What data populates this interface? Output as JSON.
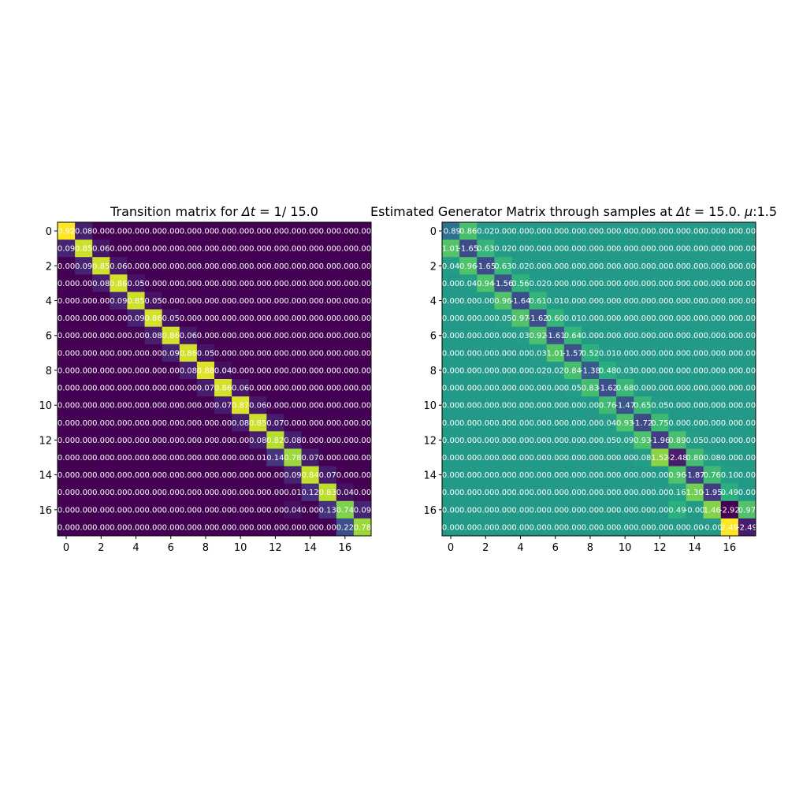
{
  "chart_data": [
    {
      "type": "heatmap",
      "title_prefix": "Transition matrix for ",
      "title_math": "Δt",
      "title_suffix": " = 1/ 15.0",
      "n": 18,
      "xticks": [
        0,
        2,
        4,
        6,
        8,
        10,
        12,
        14,
        16
      ],
      "yticks": [
        0,
        2,
        4,
        6,
        8,
        10,
        12,
        14,
        16
      ],
      "color_range": [
        0,
        0.92
      ],
      "colormap": [
        "#440154",
        "#472d7b",
        "#3b528b",
        "#2c728e",
        "#21918c",
        "#28ae80",
        "#5ec962",
        "#addc30",
        "#fde725"
      ],
      "cells": [
        {
          "r": 0,
          "c": 0,
          "v": 0.92,
          "t": "0.92"
        },
        {
          "r": 0,
          "c": 1,
          "v": 0.08,
          "t": "0.08"
        },
        {
          "r": 1,
          "c": 0,
          "v": 0.09,
          "t": "0.09"
        },
        {
          "r": 1,
          "c": 1,
          "v": 0.85,
          "t": "0.85"
        },
        {
          "r": 1,
          "c": 2,
          "v": 0.06,
          "t": "0.06"
        },
        {
          "r": 2,
          "c": 1,
          "v": 0.09,
          "t": "0.09"
        },
        {
          "r": 2,
          "c": 2,
          "v": 0.85,
          "t": "0.85"
        },
        {
          "r": 2,
          "c": 3,
          "v": 0.06,
          "t": "0.06"
        },
        {
          "r": 3,
          "c": 2,
          "v": 0.08,
          "t": "0.08"
        },
        {
          "r": 3,
          "c": 3,
          "v": 0.86,
          "t": "0.86"
        },
        {
          "r": 3,
          "c": 4,
          "v": 0.05,
          "t": "0.05"
        },
        {
          "r": 4,
          "c": 3,
          "v": 0.09,
          "t": "0.09"
        },
        {
          "r": 4,
          "c": 4,
          "v": 0.85,
          "t": "0.85"
        },
        {
          "r": 4,
          "c": 5,
          "v": 0.05,
          "t": "0.05"
        },
        {
          "r": 5,
          "c": 4,
          "v": 0.09,
          "t": "0.09"
        },
        {
          "r": 5,
          "c": 5,
          "v": 0.86,
          "t": "0.86"
        },
        {
          "r": 5,
          "c": 6,
          "v": 0.05,
          "t": "0.05"
        },
        {
          "r": 6,
          "c": 5,
          "v": 0.08,
          "t": "0.08"
        },
        {
          "r": 6,
          "c": 6,
          "v": 0.86,
          "t": "0.86"
        },
        {
          "r": 6,
          "c": 7,
          "v": 0.06,
          "t": "0.06"
        },
        {
          "r": 7,
          "c": 6,
          "v": 0.09,
          "t": "0.09"
        },
        {
          "r": 7,
          "c": 7,
          "v": 0.86,
          "t": "0.86"
        },
        {
          "r": 7,
          "c": 8,
          "v": 0.05,
          "t": "0.05"
        },
        {
          "r": 8,
          "c": 7,
          "v": 0.08,
          "t": "0.08"
        },
        {
          "r": 8,
          "c": 8,
          "v": 0.88,
          "t": "0.88"
        },
        {
          "r": 8,
          "c": 9,
          "v": 0.04,
          "t": "0.04"
        },
        {
          "r": 9,
          "c": 8,
          "v": 0.07,
          "t": "0.07"
        },
        {
          "r": 9,
          "c": 9,
          "v": 0.86,
          "t": "0.86"
        },
        {
          "r": 9,
          "c": 10,
          "v": 0.06,
          "t": "0.06"
        },
        {
          "r": 10,
          "c": 9,
          "v": 0.07,
          "t": "0.07"
        },
        {
          "r": 10,
          "c": 10,
          "v": 0.87,
          "t": "0.87"
        },
        {
          "r": 10,
          "c": 11,
          "v": 0.06,
          "t": "0.06"
        },
        {
          "r": 11,
          "c": 10,
          "v": 0.08,
          "t": "0.08"
        },
        {
          "r": 11,
          "c": 11,
          "v": 0.85,
          "t": "0.85"
        },
        {
          "r": 11,
          "c": 12,
          "v": 0.07,
          "t": "0.07"
        },
        {
          "r": 12,
          "c": 11,
          "v": 0.08,
          "t": "0.08"
        },
        {
          "r": 12,
          "c": 12,
          "v": 0.82,
          "t": "0.82"
        },
        {
          "r": 12,
          "c": 13,
          "v": 0.08,
          "t": "0.08"
        },
        {
          "r": 13,
          "c": 11,
          "v": 0.01,
          "t": "0.01"
        },
        {
          "r": 13,
          "c": 12,
          "v": 0.14,
          "t": "0.14"
        },
        {
          "r": 13,
          "c": 13,
          "v": 0.78,
          "t": "0.78"
        },
        {
          "r": 13,
          "c": 14,
          "v": 0.07,
          "t": "0.07"
        },
        {
          "r": 14,
          "c": 13,
          "v": 0.09,
          "t": "0.09"
        },
        {
          "r": 14,
          "c": 14,
          "v": 0.84,
          "t": "0.84"
        },
        {
          "r": 14,
          "c": 15,
          "v": 0.07,
          "t": "0.07"
        },
        {
          "r": 15,
          "c": 13,
          "v": 0.01,
          "t": "0.01"
        },
        {
          "r": 15,
          "c": 14,
          "v": 0.12,
          "t": "0.12"
        },
        {
          "r": 15,
          "c": 15,
          "v": 0.83,
          "t": "0.83"
        },
        {
          "r": 15,
          "c": 16,
          "v": 0.04,
          "t": "0.04"
        },
        {
          "r": 16,
          "c": 13,
          "v": 0.04,
          "t": "0.04"
        },
        {
          "r": 16,
          "c": 15,
          "v": 0.13,
          "t": "0.13"
        },
        {
          "r": 16,
          "c": 16,
          "v": 0.74,
          "t": "0.74"
        },
        {
          "r": 16,
          "c": 17,
          "v": 0.09,
          "t": "0.09"
        },
        {
          "r": 17,
          "c": 16,
          "v": 0.22,
          "t": "0.22"
        },
        {
          "r": 17,
          "c": 17,
          "v": 0.78,
          "t": "0.78"
        }
      ]
    },
    {
      "type": "heatmap",
      "title_prefix": "Estimated Generator Matrix through samples at ",
      "title_math": "Δt",
      "title_suffix": " = 15.0. ",
      "title_mu": "μ",
      "title_mu_suffix": ":1.5",
      "n": 18,
      "xticks": [
        0,
        2,
        4,
        6,
        8,
        10,
        12,
        14,
        16
      ],
      "yticks": [
        0,
        2,
        4,
        6,
        8,
        10,
        12,
        14,
        16
      ],
      "color_range": [
        -2.92,
        2.49
      ],
      "colormap": [
        "#440154",
        "#472d7b",
        "#3b528b",
        "#2c728e",
        "#21918c",
        "#28ae80",
        "#5ec962",
        "#addc30",
        "#fde725"
      ],
      "cells": [
        {
          "r": 0,
          "c": 0,
          "v": -0.89,
          "t": "-0.89"
        },
        {
          "r": 0,
          "c": 1,
          "v": 0.86,
          "t": "0.86"
        },
        {
          "r": 0,
          "c": 2,
          "v": 0.02,
          "t": "0.02"
        },
        {
          "r": 1,
          "c": 0,
          "v": 1.01,
          "t": "1.01"
        },
        {
          "r": 1,
          "c": 1,
          "v": -1.65,
          "t": "-1.65"
        },
        {
          "r": 1,
          "c": 2,
          "v": 0.63,
          "t": "0.63"
        },
        {
          "r": 1,
          "c": 3,
          "v": 0.02,
          "t": "0.02"
        },
        {
          "r": 2,
          "c": 0,
          "v": 0.04,
          "t": "0.04"
        },
        {
          "r": 2,
          "c": 1,
          "v": 0.96,
          "t": "0.96"
        },
        {
          "r": 2,
          "c": 2,
          "v": -1.65,
          "t": "-1.65"
        },
        {
          "r": 2,
          "c": 3,
          "v": 0.63,
          "t": "0.63"
        },
        {
          "r": 2,
          "c": 4,
          "v": 0.02,
          "t": "0.02"
        },
        {
          "r": 3,
          "c": 1,
          "v": 0.04,
          "t": "0.04"
        },
        {
          "r": 3,
          "c": 2,
          "v": 0.94,
          "t": "0.94"
        },
        {
          "r": 3,
          "c": 3,
          "v": -1.56,
          "t": "-1.56"
        },
        {
          "r": 3,
          "c": 4,
          "v": 0.56,
          "t": "0.56"
        },
        {
          "r": 3,
          "c": 5,
          "v": 0.02,
          "t": "0.02"
        },
        {
          "r": 4,
          "c": 3,
          "v": 0.96,
          "t": "0.96"
        },
        {
          "r": 4,
          "c": 4,
          "v": -1.64,
          "t": "-1.64"
        },
        {
          "r": 4,
          "c": 5,
          "v": 0.61,
          "t": "0.61"
        },
        {
          "r": 4,
          "c": 6,
          "v": 0.01,
          "t": "0.01"
        },
        {
          "r": 5,
          "c": 3,
          "v": 0.05,
          "t": "0.05"
        },
        {
          "r": 5,
          "c": 4,
          "v": 0.97,
          "t": "0.97"
        },
        {
          "r": 5,
          "c": 5,
          "v": -1.62,
          "t": "-1.62"
        },
        {
          "r": 5,
          "c": 6,
          "v": 0.6,
          "t": "0.60"
        },
        {
          "r": 5,
          "c": 7,
          "v": 0.01,
          "t": "0.01"
        },
        {
          "r": 6,
          "c": 4,
          "v": 0.03,
          "t": "0.03"
        },
        {
          "r": 6,
          "c": 5,
          "v": 0.92,
          "t": "0.92"
        },
        {
          "r": 6,
          "c": 6,
          "v": -1.61,
          "t": "-1.61"
        },
        {
          "r": 6,
          "c": 7,
          "v": 0.64,
          "t": "0.64"
        },
        {
          "r": 7,
          "c": 5,
          "v": 0.03,
          "t": "0.03"
        },
        {
          "r": 7,
          "c": 6,
          "v": 1.01,
          "t": "1.01"
        },
        {
          "r": 7,
          "c": 7,
          "v": -1.57,
          "t": "-1.57"
        },
        {
          "r": 7,
          "c": 8,
          "v": 0.52,
          "t": "0.52"
        },
        {
          "r": 7,
          "c": 9,
          "v": 0.01,
          "t": "0.01"
        },
        {
          "r": 8,
          "c": 5,
          "v": 0.02,
          "t": "0.02"
        },
        {
          "r": 8,
          "c": 6,
          "v": 0.02,
          "t": "0.02"
        },
        {
          "r": 8,
          "c": 7,
          "v": 0.84,
          "t": "0.84"
        },
        {
          "r": 8,
          "c": 8,
          "v": -1.38,
          "t": "-1.38"
        },
        {
          "r": 8,
          "c": 9,
          "v": 0.48,
          "t": "0.48"
        },
        {
          "r": 8,
          "c": 10,
          "v": 0.03,
          "t": "0.03"
        },
        {
          "r": 9,
          "c": 7,
          "v": 0.05,
          "t": "0.05"
        },
        {
          "r": 9,
          "c": 8,
          "v": 0.83,
          "t": "0.83"
        },
        {
          "r": 9,
          "c": 9,
          "v": -1.62,
          "t": "-1.62"
        },
        {
          "r": 9,
          "c": 10,
          "v": 0.68,
          "t": "0.68"
        },
        {
          "r": 10,
          "c": 9,
          "v": 0.76,
          "t": "0.76"
        },
        {
          "r": 10,
          "c": 10,
          "v": -1.47,
          "t": "-1.47"
        },
        {
          "r": 10,
          "c": 11,
          "v": 0.65,
          "t": "0.65"
        },
        {
          "r": 10,
          "c": 12,
          "v": 0.05,
          "t": "0.05"
        },
        {
          "r": 11,
          "c": 9,
          "v": 0.04,
          "t": "0.04"
        },
        {
          "r": 11,
          "c": 10,
          "v": 0.93,
          "t": "0.93"
        },
        {
          "r": 11,
          "c": 11,
          "v": -1.72,
          "t": "-1.72"
        },
        {
          "r": 11,
          "c": 12,
          "v": 0.75,
          "t": "0.75"
        },
        {
          "r": 12,
          "c": 9,
          "v": 0.05,
          "t": "0.05"
        },
        {
          "r": 12,
          "c": 10,
          "v": 0.09,
          "t": "0.09"
        },
        {
          "r": 12,
          "c": 11,
          "v": 0.93,
          "t": "0.93"
        },
        {
          "r": 12,
          "c": 12,
          "v": -1.96,
          "t": "-1.96"
        },
        {
          "r": 12,
          "c": 13,
          "v": 0.89,
          "t": "0.89"
        },
        {
          "r": 12,
          "c": 14,
          "v": 0.05,
          "t": "0.05"
        },
        {
          "r": 13,
          "c": 11,
          "v": 0.08,
          "t": "0.08"
        },
        {
          "r": 13,
          "c": 12,
          "v": 1.52,
          "t": "1.52"
        },
        {
          "r": 13,
          "c": 13,
          "v": -2.48,
          "t": "-2.48"
        },
        {
          "r": 13,
          "c": 14,
          "v": 0.8,
          "t": "0.80"
        },
        {
          "r": 13,
          "c": 15,
          "v": 0.08,
          "t": "0.08"
        },
        {
          "r": 14,
          "c": 13,
          "v": 0.96,
          "t": "0.96"
        },
        {
          "r": 14,
          "c": 14,
          "v": -1.87,
          "t": "-1.87"
        },
        {
          "r": 14,
          "c": 15,
          "v": 0.76,
          "t": "0.76"
        },
        {
          "r": 14,
          "c": 16,
          "v": 0.1,
          "t": "0.10"
        },
        {
          "r": 15,
          "c": 13,
          "v": 0.16,
          "t": "0.16"
        },
        {
          "r": 15,
          "c": 14,
          "v": 1.3,
          "t": "1.30"
        },
        {
          "r": 15,
          "c": 15,
          "v": -1.95,
          "t": "-1.95"
        },
        {
          "r": 15,
          "c": 16,
          "v": 0.49,
          "t": "0.49"
        },
        {
          "r": 16,
          "c": 13,
          "v": 0.49,
          "t": "0.49"
        },
        {
          "r": 16,
          "c": 14,
          "v": -0.0,
          "t": "-0.00"
        },
        {
          "r": 16,
          "c": 15,
          "v": 1.46,
          "t": "1.46"
        },
        {
          "r": 16,
          "c": 16,
          "v": -2.92,
          "t": "-2.92"
        },
        {
          "r": 16,
          "c": 17,
          "v": 0.97,
          "t": "0.97"
        },
        {
          "r": 17,
          "c": 15,
          "v": -0.0,
          "t": "-0.00"
        },
        {
          "r": 17,
          "c": 16,
          "v": 2.49,
          "t": "2.49"
        },
        {
          "r": 17,
          "c": 17,
          "v": -2.49,
          "t": "-2.49"
        }
      ]
    }
  ]
}
